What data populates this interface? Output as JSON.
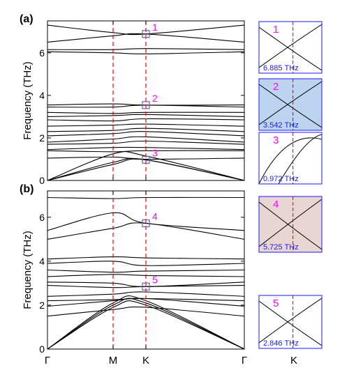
{
  "chart_data": {
    "type": "line",
    "frame_color": "#000000",
    "band_color": "#000000",
    "marker_color": "#6a5acd",
    "label_color": "#ff00ff",
    "vline_color": "#ff0000",
    "panels": [
      {
        "id": "a",
        "label": "(a)",
        "ylabel": "Frequency (THz)",
        "ylim": [
          0,
          7.5
        ],
        "yticks": [
          0,
          2,
          4,
          6
        ],
        "x": [
          0,
          1,
          1.5,
          3
        ],
        "bands": [
          [
            0,
            0.75,
            0.97,
            0
          ],
          [
            0,
            0.85,
            0.97,
            0
          ],
          [
            0,
            1.25,
            1.15,
            0
          ],
          [
            1.05,
            1.1,
            1.0,
            1.05
          ],
          [
            1.4,
            1.35,
            1.4,
            1.4
          ],
          [
            1.45,
            1.55,
            1.55,
            1.45
          ],
          [
            1.7,
            1.75,
            1.85,
            1.7
          ],
          [
            1.8,
            1.95,
            2.05,
            1.8
          ],
          [
            2.1,
            2.2,
            2.3,
            2.1
          ],
          [
            2.3,
            2.35,
            2.45,
            2.3
          ],
          [
            2.55,
            2.6,
            2.65,
            2.55
          ],
          [
            2.85,
            2.8,
            2.9,
            2.85
          ],
          [
            3.0,
            3.05,
            3.1,
            3.0
          ],
          [
            3.2,
            3.15,
            3.2,
            3.2
          ],
          [
            3.45,
            3.45,
            3.54,
            3.45
          ],
          [
            3.55,
            3.6,
            3.54,
            3.55
          ],
          [
            6.05,
            6.0,
            5.95,
            6.05
          ],
          [
            6.15,
            6.15,
            6.2,
            6.15
          ],
          [
            6.5,
            6.8,
            6.885,
            6.5
          ],
          [
            7.3,
            6.95,
            6.885,
            7.3
          ]
        ],
        "markers": [
          {
            "label": "1",
            "x": 1.5,
            "y": 6.885
          },
          {
            "label": "2",
            "x": 1.5,
            "y": 3.542
          },
          {
            "label": "3",
            "x": 1.5,
            "y": 0.972
          }
        ]
      },
      {
        "id": "b",
        "label": "(b)",
        "ylabel": "Frequency (THz)",
        "ylim": [
          0,
          7.2
        ],
        "yticks": [
          0,
          2,
          4,
          6
        ],
        "x": [
          0,
          1,
          1.5,
          3
        ],
        "bands": [
          [
            0,
            2.0,
            2.1,
            0
          ],
          [
            0,
            1.9,
            2.0,
            0
          ],
          [
            0,
            2.1,
            2.2,
            0
          ],
          [
            1.5,
            1.8,
            1.9,
            1.5
          ],
          [
            1.95,
            2.2,
            2.3,
            1.95
          ],
          [
            2.2,
            2.25,
            2.3,
            2.2
          ],
          [
            2.4,
            2.5,
            2.6,
            2.4
          ],
          [
            2.9,
            2.8,
            2.846,
            2.9
          ],
          [
            3.05,
            3.0,
            2.846,
            3.05
          ],
          [
            3.3,
            3.4,
            3.35,
            3.3
          ],
          [
            3.6,
            3.5,
            3.55,
            3.6
          ],
          [
            3.9,
            4.0,
            3.8,
            3.9
          ],
          [
            4.1,
            4.2,
            4.15,
            4.1
          ],
          [
            5.0,
            5.5,
            5.725,
            5.0
          ],
          [
            5.4,
            6.2,
            5.725,
            5.4
          ],
          [
            6.9,
            6.85,
            6.9,
            6.9
          ]
        ],
        "markers": [
          {
            "label": "4",
            "x": 1.5,
            "y": 5.725
          },
          {
            "label": "5",
            "x": 1.5,
            "y": 2.846
          }
        ]
      }
    ],
    "xticks": [
      {
        "label": "Γ",
        "x": 0
      },
      {
        "label": "M",
        "x": 1
      },
      {
        "label": "K",
        "x": 1.5
      },
      {
        "label": "Γ",
        "x": 3
      }
    ],
    "vlines": [
      1,
      1.5
    ],
    "insets": [
      {
        "label": "1",
        "value": "6.885",
        "unit": "THz",
        "shade": "",
        "kind": "cross"
      },
      {
        "label": "2",
        "value": "3.542",
        "unit": "THz",
        "shade": "#bcd4ef",
        "kind": "cross"
      },
      {
        "label": "3",
        "value": "0.972",
        "unit": "THz",
        "shade": "",
        "kind": "gap"
      },
      {
        "label": "4",
        "value": "5.725",
        "unit": "THz",
        "shade": "#e8d6d2",
        "kind": "cross"
      },
      {
        "label": "5",
        "value": "2.846",
        "unit": "THz",
        "shade": "",
        "kind": "cross"
      }
    ],
    "inset_xlabel": "K"
  }
}
